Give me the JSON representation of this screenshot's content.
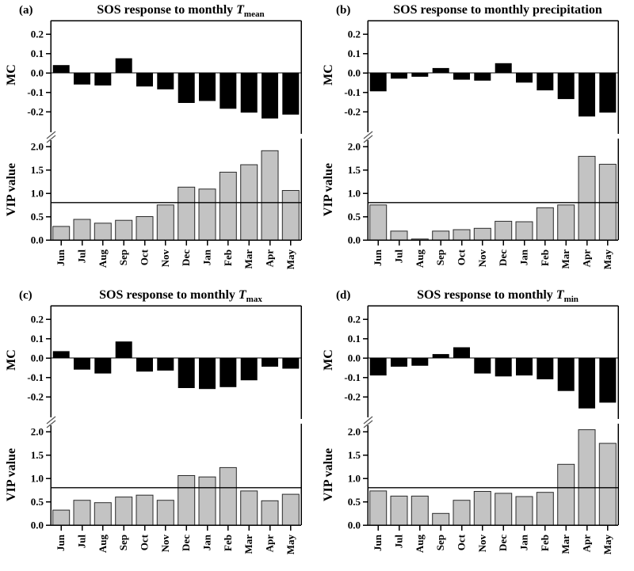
{
  "figure": {
    "background": "#ffffff",
    "bar_color_mc": "#000000",
    "bar_fill_vip": "#c3c3c3",
    "bar_stroke_vip": "#2b2b2b",
    "threshold_color": "#000000"
  },
  "chart_data": [
    {
      "id": "a",
      "panel_label": "(a)",
      "type": "bar",
      "title": {
        "prefix": "SOS response to monthly ",
        "symbol": "T",
        "subscript": "mean"
      },
      "categories": [
        "Jun",
        "Jul",
        "Aug",
        "Sep",
        "Oct",
        "Nov",
        "Dec",
        "Jan",
        "Feb",
        "Mar",
        "Apr",
        "May"
      ],
      "mc": {
        "axis_label": "MC",
        "tick_labels": [
          "0.2",
          "0.1",
          "0.0",
          "-0.1",
          "-0.2"
        ],
        "ylim": [
          -0.28,
          0.27
        ],
        "values": [
          0.04,
          -0.06,
          -0.065,
          0.075,
          -0.07,
          -0.085,
          -0.155,
          -0.145,
          -0.185,
          -0.205,
          -0.235,
          -0.215
        ]
      },
      "vip": {
        "axis_label": "VIP value",
        "tick_labels": [
          "2.0",
          "1.5",
          "1.0",
          "0.5",
          "0.0"
        ],
        "ylim": [
          0,
          2.15
        ],
        "threshold": 0.8,
        "values": [
          0.29,
          0.44,
          0.36,
          0.42,
          0.5,
          0.75,
          1.13,
          1.09,
          1.45,
          1.61,
          1.91,
          1.06
        ]
      }
    },
    {
      "id": "b",
      "panel_label": "(b)",
      "type": "bar",
      "title": {
        "prefix": "SOS response to monthly precipitation",
        "symbol": "",
        "subscript": ""
      },
      "categories": [
        "Jun",
        "Jul",
        "Aug",
        "Sep",
        "Oct",
        "Nov",
        "Dec",
        "Jan",
        "Feb",
        "Mar",
        "Apr",
        "May"
      ],
      "mc": {
        "axis_label": "MC",
        "tick_labels": [
          "0.2",
          "0.1",
          "0.0",
          "-0.1",
          "-0.2"
        ],
        "ylim": [
          -0.28,
          0.27
        ],
        "values": [
          -0.095,
          -0.03,
          -0.02,
          0.025,
          -0.035,
          -0.04,
          0.05,
          -0.05,
          -0.09,
          -0.135,
          -0.225,
          -0.205
        ]
      },
      "vip": {
        "axis_label": "VIP value",
        "tick_labels": [
          "2.0",
          "1.5",
          "1.0",
          "0.5",
          "0.0"
        ],
        "ylim": [
          0,
          2.15
        ],
        "threshold": 0.8,
        "values": [
          0.75,
          0.19,
          0.02,
          0.19,
          0.22,
          0.25,
          0.4,
          0.39,
          0.69,
          0.75,
          1.79,
          1.62
        ]
      }
    },
    {
      "id": "c",
      "panel_label": "(c)",
      "type": "bar",
      "title": {
        "prefix": "SOS response to monthly ",
        "symbol": "T",
        "subscript": "max"
      },
      "categories": [
        "Jun",
        "Jul",
        "Aug",
        "Sep",
        "Oct",
        "Nov",
        "Dec",
        "Jan",
        "Feb",
        "Mar",
        "Apr",
        "May"
      ],
      "mc": {
        "axis_label": "MC",
        "tick_labels": [
          "0.2",
          "0.1",
          "0.0",
          "-0.1",
          "-0.2"
        ],
        "ylim": [
          -0.28,
          0.27
        ],
        "values": [
          0.035,
          -0.06,
          -0.08,
          0.085,
          -0.07,
          -0.065,
          -0.155,
          -0.16,
          -0.15,
          -0.115,
          -0.045,
          -0.055
        ]
      },
      "vip": {
        "axis_label": "VIP value",
        "tick_labels": [
          "2.0",
          "1.5",
          "1.0",
          "0.5",
          "0.0"
        ],
        "ylim": [
          0,
          2.15
        ],
        "threshold": 0.8,
        "values": [
          0.32,
          0.53,
          0.48,
          0.6,
          0.64,
          0.53,
          1.06,
          1.03,
          1.23,
          0.73,
          0.52,
          0.66
        ]
      }
    },
    {
      "id": "d",
      "panel_label": "(d)",
      "type": "bar",
      "title": {
        "prefix": "SOS response to monthly ",
        "symbol": "T",
        "subscript": "min"
      },
      "categories": [
        "Jun",
        "Jul",
        "Aug",
        "Sep",
        "Oct",
        "Nov",
        "Dec",
        "Jan",
        "Feb",
        "Mar",
        "Apr",
        "May"
      ],
      "mc": {
        "axis_label": "MC",
        "tick_labels": [
          "0.2",
          "0.1",
          "0.0",
          "-0.1",
          "-0.2"
        ],
        "ylim": [
          -0.28,
          0.27
        ],
        "values": [
          -0.09,
          -0.045,
          -0.04,
          0.02,
          0.055,
          -0.08,
          -0.095,
          -0.09,
          -0.11,
          -0.17,
          -0.26,
          -0.23
        ]
      },
      "vip": {
        "axis_label": "VIP value",
        "tick_labels": [
          "2.0",
          "1.5",
          "1.0",
          "0.5",
          "0.0"
        ],
        "ylim": [
          0,
          2.15
        ],
        "threshold": 0.8,
        "values": [
          0.73,
          0.62,
          0.62,
          0.25,
          0.53,
          0.72,
          0.68,
          0.61,
          0.7,
          1.3,
          2.04,
          1.75
        ]
      }
    }
  ]
}
